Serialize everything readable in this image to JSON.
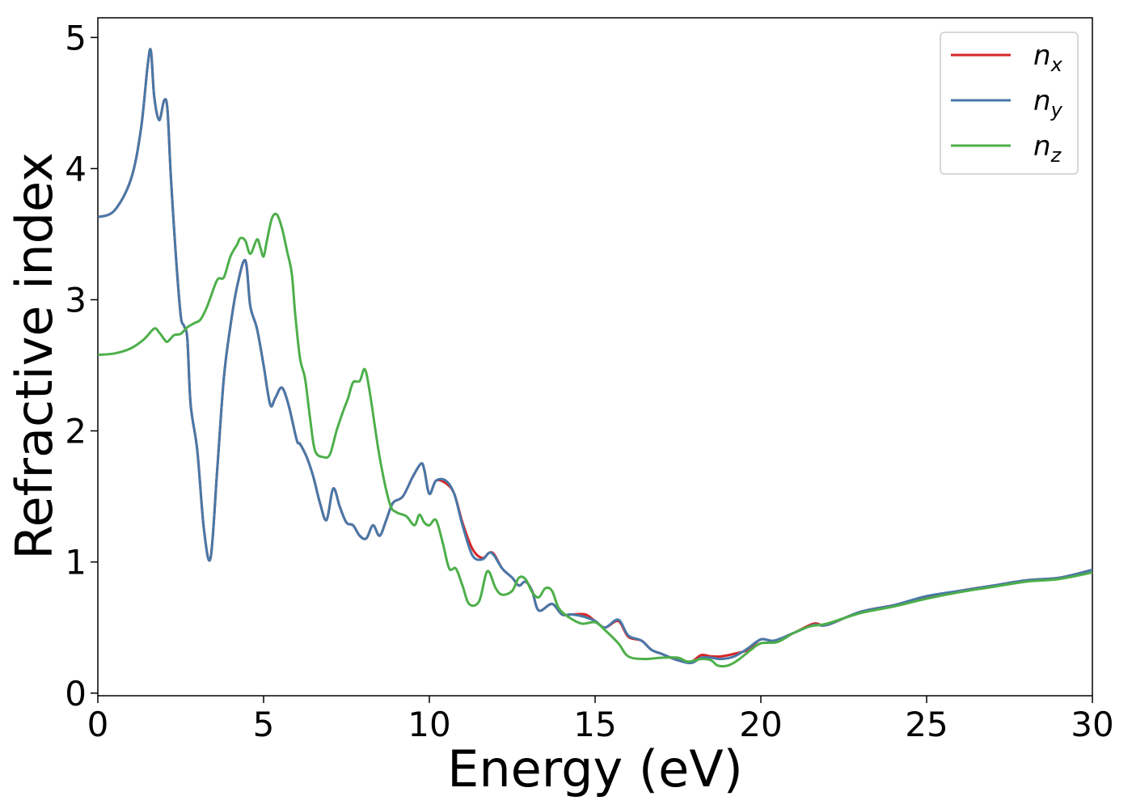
{
  "chart_data": {
    "type": "line",
    "xlabel": "Energy (eV)",
    "ylabel": "Refractive index",
    "xlim": [
      0,
      30
    ],
    "ylim": [
      -0.02,
      5.15
    ],
    "xticks": [
      0,
      5,
      10,
      15,
      20,
      25,
      30
    ],
    "yticks": [
      0,
      1,
      2,
      3,
      4,
      5
    ],
    "grid": false,
    "legend_position": "top-right",
    "series": [
      {
        "name": "n",
        "subscript": "x",
        "color": "#d62728",
        "x": [
          0,
          0.5,
          1.0,
          1.3,
          1.5,
          1.6,
          1.7,
          1.85,
          2.0,
          2.1,
          2.2,
          2.35,
          2.5,
          2.6,
          2.7,
          2.8,
          3.0,
          3.2,
          3.4,
          3.6,
          3.8,
          4.0,
          4.2,
          4.45,
          4.6,
          4.8,
          5.0,
          5.2,
          5.35,
          5.55,
          5.75,
          6.0,
          6.1,
          6.3,
          6.5,
          6.7,
          6.9,
          7.1,
          7.3,
          7.5,
          7.7,
          7.9,
          8.1,
          8.3,
          8.5,
          8.7,
          8.9,
          9.2,
          9.5,
          9.75,
          9.85,
          10.0,
          10.2,
          10.5,
          10.75,
          11.0,
          11.3,
          11.6,
          11.8,
          11.95,
          12.2,
          12.5,
          12.7,
          12.9,
          13.1,
          13.3,
          13.7,
          14.0,
          14.3,
          14.7,
          15.0,
          15.3,
          15.7,
          16.0,
          16.4,
          16.7,
          17.0,
          17.5,
          17.9,
          18.2,
          18.5,
          18.8,
          19.2,
          19.6,
          20.0,
          20.4,
          21.0,
          21.6,
          22.0,
          23.0,
          24.0,
          25.0,
          26.0,
          27.0,
          28.0,
          29.0,
          30.0
        ],
        "y": [
          3.63,
          3.68,
          3.92,
          4.3,
          4.78,
          4.9,
          4.55,
          4.37,
          4.52,
          4.45,
          3.95,
          3.35,
          2.88,
          2.8,
          2.7,
          2.2,
          1.85,
          1.25,
          1.03,
          1.7,
          2.4,
          2.8,
          3.1,
          3.3,
          2.95,
          2.78,
          2.5,
          2.2,
          2.25,
          2.33,
          2.2,
          1.93,
          1.9,
          1.8,
          1.65,
          1.45,
          1.32,
          1.56,
          1.42,
          1.3,
          1.28,
          1.2,
          1.18,
          1.28,
          1.2,
          1.32,
          1.45,
          1.5,
          1.65,
          1.75,
          1.7,
          1.52,
          1.62,
          1.6,
          1.52,
          1.3,
          1.1,
          1.03,
          1.07,
          1.06,
          0.95,
          0.88,
          0.82,
          0.85,
          0.78,
          0.63,
          0.68,
          0.6,
          0.6,
          0.6,
          0.55,
          0.5,
          0.55,
          0.43,
          0.4,
          0.33,
          0.3,
          0.25,
          0.24,
          0.29,
          0.28,
          0.28,
          0.3,
          0.33,
          0.41,
          0.4,
          0.46,
          0.53,
          0.52,
          0.62,
          0.67,
          0.73,
          0.78,
          0.82,
          0.86,
          0.88,
          0.94
        ]
      },
      {
        "name": "n",
        "subscript": "y",
        "color": "#4878a8",
        "x": [
          0,
          0.5,
          1.0,
          1.3,
          1.5,
          1.6,
          1.7,
          1.85,
          2.0,
          2.1,
          2.2,
          2.35,
          2.5,
          2.6,
          2.7,
          2.8,
          3.0,
          3.2,
          3.4,
          3.6,
          3.8,
          4.0,
          4.2,
          4.45,
          4.6,
          4.8,
          5.0,
          5.2,
          5.35,
          5.55,
          5.75,
          6.0,
          6.1,
          6.3,
          6.5,
          6.7,
          6.9,
          7.1,
          7.3,
          7.5,
          7.7,
          7.9,
          8.1,
          8.3,
          8.5,
          8.7,
          8.9,
          9.2,
          9.5,
          9.75,
          9.85,
          10.0,
          10.2,
          10.5,
          10.75,
          11.0,
          11.3,
          11.6,
          11.8,
          11.95,
          12.2,
          12.5,
          12.7,
          12.9,
          13.1,
          13.3,
          13.7,
          14.0,
          14.3,
          14.7,
          15.0,
          15.3,
          15.7,
          16.0,
          16.4,
          16.7,
          17.0,
          17.5,
          17.9,
          18.2,
          18.5,
          18.8,
          19.2,
          19.6,
          20.0,
          20.4,
          21.0,
          21.6,
          22.0,
          23.0,
          24.0,
          25.0,
          26.0,
          27.0,
          28.0,
          29.0,
          30.0
        ],
        "y": [
          3.63,
          3.68,
          3.92,
          4.3,
          4.78,
          4.9,
          4.55,
          4.37,
          4.52,
          4.45,
          3.95,
          3.35,
          2.88,
          2.8,
          2.7,
          2.2,
          1.85,
          1.25,
          1.03,
          1.7,
          2.4,
          2.8,
          3.1,
          3.3,
          2.95,
          2.78,
          2.5,
          2.2,
          2.25,
          2.33,
          2.2,
          1.93,
          1.9,
          1.8,
          1.65,
          1.45,
          1.32,
          1.56,
          1.42,
          1.3,
          1.28,
          1.2,
          1.18,
          1.28,
          1.2,
          1.32,
          1.45,
          1.5,
          1.65,
          1.75,
          1.7,
          1.52,
          1.62,
          1.62,
          1.52,
          1.28,
          1.05,
          1.02,
          1.07,
          1.05,
          0.95,
          0.88,
          0.82,
          0.85,
          0.78,
          0.63,
          0.68,
          0.6,
          0.6,
          0.58,
          0.55,
          0.5,
          0.56,
          0.44,
          0.4,
          0.33,
          0.3,
          0.25,
          0.23,
          0.27,
          0.27,
          0.26,
          0.28,
          0.34,
          0.41,
          0.4,
          0.46,
          0.52,
          0.52,
          0.62,
          0.67,
          0.74,
          0.78,
          0.82,
          0.86,
          0.88,
          0.94
        ]
      },
      {
        "name": "n",
        "subscript": "z",
        "color": "#4daf4a",
        "x": [
          0,
          0.5,
          1.0,
          1.4,
          1.7,
          1.85,
          2.0,
          2.1,
          2.3,
          2.5,
          2.7,
          2.9,
          3.1,
          3.3,
          3.6,
          3.8,
          4.0,
          4.2,
          4.3,
          4.45,
          4.6,
          4.8,
          4.9,
          5.0,
          5.1,
          5.25,
          5.4,
          5.55,
          5.7,
          5.85,
          5.95,
          6.1,
          6.25,
          6.4,
          6.55,
          6.8,
          7.0,
          7.2,
          7.4,
          7.55,
          7.7,
          7.9,
          8.05,
          8.2,
          8.5,
          8.8,
          9.0,
          9.3,
          9.55,
          9.7,
          9.85,
          10.0,
          10.2,
          10.4,
          10.6,
          10.8,
          11.0,
          11.2,
          11.5,
          11.75,
          12.0,
          12.2,
          12.5,
          12.7,
          12.9,
          13.1,
          13.3,
          13.5,
          13.7,
          13.9,
          14.2,
          14.6,
          15.0,
          15.3,
          15.7,
          16.0,
          16.5,
          17.0,
          17.5,
          17.8,
          18.2,
          18.5,
          18.7,
          19.0,
          19.3,
          19.7,
          20.0,
          20.5,
          21.0,
          21.5,
          22.0,
          23.0,
          24.0,
          25.0,
          26.0,
          27.0,
          28.0,
          29.0,
          30.0
        ],
        "y": [
          2.58,
          2.59,
          2.63,
          2.7,
          2.78,
          2.75,
          2.7,
          2.68,
          2.73,
          2.74,
          2.79,
          2.82,
          2.85,
          2.95,
          3.15,
          3.17,
          3.33,
          3.42,
          3.47,
          3.45,
          3.35,
          3.46,
          3.4,
          3.33,
          3.45,
          3.62,
          3.65,
          3.55,
          3.38,
          3.2,
          2.9,
          2.55,
          2.4,
          2.1,
          1.85,
          1.8,
          1.82,
          2.0,
          2.15,
          2.25,
          2.37,
          2.38,
          2.47,
          2.3,
          1.8,
          1.45,
          1.38,
          1.35,
          1.28,
          1.36,
          1.3,
          1.28,
          1.32,
          1.15,
          0.95,
          0.95,
          0.82,
          0.68,
          0.7,
          0.93,
          0.8,
          0.75,
          0.78,
          0.88,
          0.87,
          0.77,
          0.73,
          0.8,
          0.78,
          0.65,
          0.58,
          0.53,
          0.54,
          0.48,
          0.38,
          0.28,
          0.26,
          0.27,
          0.27,
          0.24,
          0.26,
          0.25,
          0.21,
          0.21,
          0.25,
          0.33,
          0.38,
          0.39,
          0.46,
          0.51,
          0.53,
          0.61,
          0.66,
          0.72,
          0.77,
          0.81,
          0.85,
          0.87,
          0.92
        ]
      }
    ]
  }
}
